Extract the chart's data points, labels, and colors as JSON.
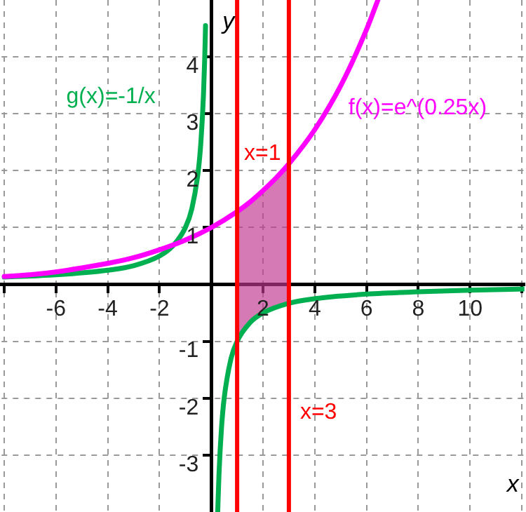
{
  "chart_data": {
    "type": "line",
    "xlabel": "x",
    "ylabel": "y",
    "xlim": [
      -8.1,
      12.1
    ],
    "ylim": [
      -4,
      5
    ],
    "xticks": [
      {
        "value": -8,
        "label": null
      },
      -6,
      -4,
      -2,
      {
        "value": 0,
        "label": null
      },
      2,
      4,
      6,
      8,
      10,
      {
        "value": 12,
        "label": null
      }
    ],
    "yticks": [
      -3,
      -2,
      -1,
      {
        "value": 0,
        "label": null
      },
      1,
      2,
      3,
      4
    ],
    "grid": true,
    "legend": false,
    "marker": "none",
    "line_style": "solid",
    "series": [
      {
        "name": "f(x)=e^(0.25x)",
        "color": "#ff00ff",
        "x": [
          -8,
          -7,
          -6,
          -5,
          -4,
          -3,
          -2,
          -1,
          0,
          1,
          1.5,
          2,
          2.5,
          3,
          4,
          5,
          6,
          6.44
        ],
        "values": [
          0.14,
          0.17,
          0.22,
          0.29,
          0.37,
          0.47,
          0.61,
          0.78,
          1,
          1.28,
          1.45,
          1.65,
          1.87,
          2.12,
          2.72,
          3.49,
          4.48,
          5
        ],
        "lower": [
          null,
          null,
          null,
          null,
          null,
          null,
          null,
          null,
          null,
          -1,
          -0.67,
          -0.5,
          -0.4,
          -0.33,
          null,
          null,
          null,
          null
        ],
        "upper": [
          null,
          null,
          null,
          null,
          null,
          null,
          null,
          null,
          null,
          1.28,
          1.45,
          1.65,
          1.87,
          2.12,
          null,
          null,
          null,
          null
        ]
      },
      {
        "name": "g(x)=-1/x",
        "color": "#00b050",
        "x": [
          -8,
          -6,
          -4,
          -3,
          -2,
          -1.5,
          -1,
          -0.75,
          -0.5,
          -0.4,
          -0.3,
          -0.25,
          -0.22,
          0,
          0.25,
          0.3,
          0.4,
          0.5,
          0.75,
          1,
          1.5,
          2,
          3,
          4,
          6,
          8,
          10,
          12.1
        ],
        "values": [
          0.13,
          0.17,
          0.25,
          0.33,
          0.5,
          0.67,
          1,
          1.33,
          2,
          2.5,
          3.33,
          4,
          4.55,
          null,
          -4,
          -3.33,
          -2.5,
          -2,
          -1.33,
          -1,
          -0.67,
          -0.5,
          -0.33,
          -0.25,
          -0.17,
          -0.13,
          -0.1,
          -0.08
        ]
      }
    ],
    "ref_lines": [
      {
        "axis": "x",
        "value": 1,
        "label": "x=1",
        "color": "#ff0000"
      },
      {
        "axis": "x",
        "value": 3,
        "label": "x=3",
        "color": "#ff0000"
      }
    ]
  }
}
